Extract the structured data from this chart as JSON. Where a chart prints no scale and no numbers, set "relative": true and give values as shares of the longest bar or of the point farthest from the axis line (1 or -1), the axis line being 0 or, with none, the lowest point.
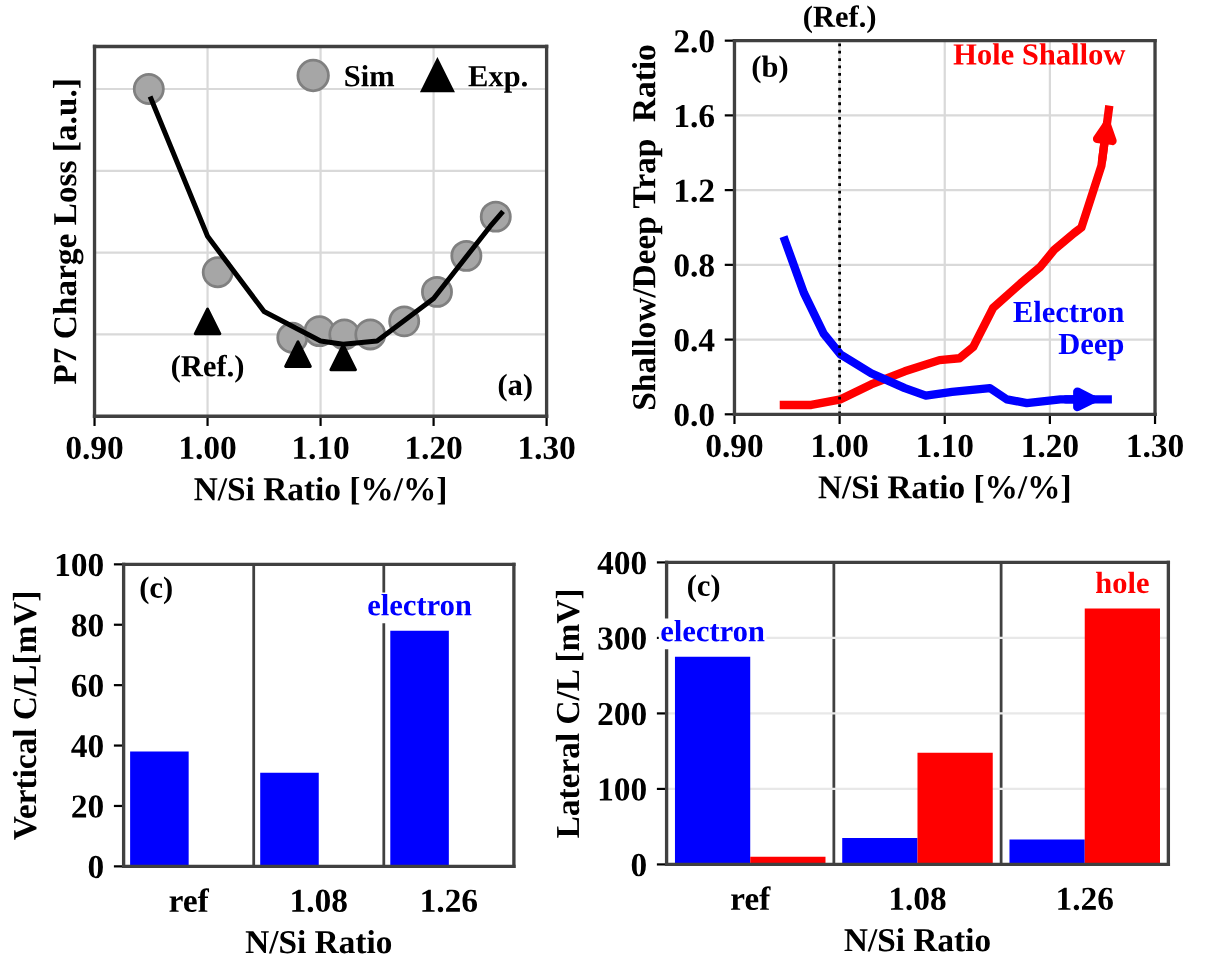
{
  "chart_data": [
    {
      "type": "scatter",
      "xlabel": "N/Si Ratio [%/%]",
      "ylabel": "P7 Charge Loss [a.u.]",
      "relative": true,
      "xlim": [
        0.9,
        1.3
      ],
      "xticks": [
        {
          "value": 0.9,
          "label": "0.90"
        },
        {
          "value": 1.0,
          "label": "1.00"
        },
        {
          "value": 1.1,
          "label": "1.10"
        },
        {
          "value": 1.2,
          "label": "1.20"
        },
        {
          "value": 1.3,
          "label": "1.30"
        }
      ],
      "grid": true,
      "legend": "top right",
      "annotations": [
        {
          "text": "(Ref.)",
          "x": 1.0,
          "y": 0.29
        },
        "(a)"
      ],
      "series": [
        {
          "name": "Sim",
          "type": "scatter",
          "marker": "circle",
          "color": "#a6a6a6",
          "x": [
            0.948,
            1.009,
            1.075,
            1.099,
            1.121,
            1.144,
            1.174,
            1.203,
            1.229,
            1.255
          ],
          "values": [
            1.0,
            0.44,
            0.24,
            0.26,
            0.25,
            0.25,
            0.29,
            0.38,
            0.49,
            0.61
          ]
        },
        {
          "name": "Exp.",
          "type": "scatter",
          "marker": "triangle",
          "color": "#000000",
          "x": [
            1.0,
            1.08,
            1.12
          ],
          "values": [
            0.29,
            0.19,
            0.18
          ]
        },
        {
          "type": "line",
          "marker": "none",
          "color": "#000000",
          "x": [
            0.95,
            1.0,
            1.05,
            1.1,
            1.12,
            1.15,
            1.2,
            1.25,
            1.26
          ],
          "values": [
            0.97,
            0.55,
            0.32,
            0.23,
            0.22,
            0.23,
            0.36,
            0.58,
            0.62
          ]
        }
      ]
    },
    {
      "type": "line",
      "xlabel": "N/Si Ratio [%/%]",
      "ylabel": "Shallow/Deep Trap  Ratio",
      "xlim": [
        0.9,
        1.3
      ],
      "xticks": [
        {
          "value": 0.9,
          "label": "0.90"
        },
        {
          "value": 1.0,
          "label": "1.00"
        },
        {
          "value": 1.1,
          "label": "1.10"
        },
        {
          "value": 1.2,
          "label": "1.20"
        },
        {
          "value": 1.3,
          "label": "1.30"
        }
      ],
      "ylim": [
        0,
        2
      ],
      "yticks": [
        {
          "value": 0,
          "label": "0.0"
        },
        {
          "value": 0.4,
          "label": "0.4"
        },
        {
          "value": 0.8,
          "label": "0.8"
        },
        {
          "value": 1.2,
          "label": "1.2"
        },
        {
          "value": 1.6,
          "label": "1.6"
        },
        {
          "value": 2,
          "label": "2.0"
        }
      ],
      "grid": true,
      "ref_lines": [
        {
          "axis": "x",
          "value": 1.0,
          "label": "(Ref.)",
          "line_style": "dotted",
          "color": "#000000"
        }
      ],
      "annotations": [
        "(b)"
      ],
      "series": [
        {
          "name": "Hole Shallow",
          "color": "#ff0000",
          "x": [
            0.947,
            0.973,
            1.001,
            1.03,
            1.062,
            1.095,
            1.114,
            1.127,
            1.146,
            1.172,
            1.191,
            1.204,
            1.223,
            1.23,
            1.249,
            1.256
          ],
          "values": [
            0.05,
            0.05,
            0.08,
            0.16,
            0.23,
            0.29,
            0.3,
            0.36,
            0.57,
            0.7,
            0.79,
            0.88,
            0.97,
            1.0,
            1.33,
            1.63
          ]
        },
        {
          "name": "Electron\nDeep",
          "color": "#0000ff",
          "x": [
            0.948,
            0.966,
            0.985,
            1.001,
            1.03,
            1.062,
            1.082,
            1.107,
            1.143,
            1.159,
            1.178,
            1.21,
            1.255
          ],
          "values": [
            0.93,
            0.65,
            0.43,
            0.32,
            0.22,
            0.14,
            0.1,
            0.12,
            0.14,
            0.08,
            0.06,
            0.08,
            0.08
          ]
        }
      ]
    },
    {
      "type": "bar",
      "xlabel": "N/Si Ratio",
      "ylabel": "Vertical C/L[mV]",
      "categories": [
        "ref",
        "1.08",
        "1.26"
      ],
      "ylim": [
        0,
        100
      ],
      "yticks": [
        0,
        20,
        40,
        60,
        80,
        100
      ],
      "grid": "x",
      "annotations": [
        "(c)"
      ],
      "series": [
        {
          "name": "electron",
          "color": "#0000ff",
          "values": [
            38,
            31,
            78
          ]
        }
      ]
    },
    {
      "type": "bar",
      "xlabel": "N/Si Ratio",
      "ylabel": "Lateral C/L [mV]",
      "categories": [
        "ref",
        "1.08",
        "1.26"
      ],
      "ylim": [
        0,
        400
      ],
      "yticks": [
        0,
        100,
        200,
        300,
        400
      ],
      "grid": true,
      "annotations": [
        "(c)"
      ],
      "series": [
        {
          "name": "electron",
          "color": "#0000ff",
          "values": [
            275,
            35,
            33
          ]
        },
        {
          "name": "hole",
          "color": "#ff0000",
          "values": [
            10,
            148,
            339
          ]
        }
      ]
    }
  ]
}
